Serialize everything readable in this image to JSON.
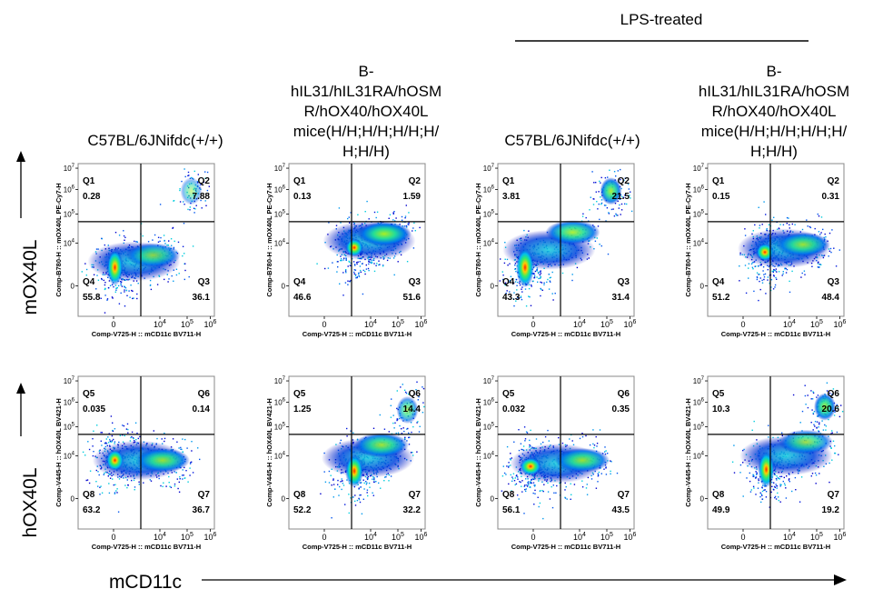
{
  "header": {
    "lps_label": "LPS-treated",
    "columns": [
      [
        "C57BL/6JNifdc(+/+)"
      ],
      [
        "B-",
        "hIL31/hIL31RA/hOSM",
        "R/hOX40/hOX40L",
        "mice(H/H;H/H;H/H;H/",
        "H;H/H)"
      ],
      [
        "C57BL/6JNifdc(+/+)"
      ],
      [
        "B-",
        "hIL31/hIL31RA/hOSM",
        "R/hOX40/hOX40L",
        "mice(H/H;H/H;H/H;H/",
        "H;H/H)"
      ]
    ]
  },
  "row_labels": [
    "mOX40L",
    "hOX40L"
  ],
  "bottom_axis_label": "mCD11c",
  "colors": {
    "density_low": "#0000cc",
    "density_mid": "#00ddcc",
    "density_high": "#ffee00",
    "density_peak": "#ff2200",
    "gate_line": "#000000",
    "frame": "#888888"
  },
  "chart_data": [
    {
      "type": "scatter",
      "subtype": "flow-cytometry-density",
      "row": 0,
      "col": 0,
      "xlabel": "Comp-V725-H :: mCD11c BV711-H",
      "ylabel": "Comp-B780-H :: mOX40L PE-Cy7-H",
      "x_ticks": [
        "0",
        "10^4",
        "10^5",
        "10^6"
      ],
      "y_ticks": [
        "0",
        "10^4",
        "10^5",
        "10^6",
        "10^7"
      ],
      "quadrants": [
        {
          "name": "Q1",
          "value": "0.28"
        },
        {
          "name": "Q2",
          "value": "7.88"
        },
        {
          "name": "Q3",
          "value": "36.1"
        },
        {
          "name": "Q4",
          "value": "55.8"
        }
      ]
    },
    {
      "type": "scatter",
      "subtype": "flow-cytometry-density",
      "row": 0,
      "col": 1,
      "xlabel": "Comp-V725-H :: mCD11c BV711-H",
      "ylabel": "Comp-B780-H :: mOX40L PE-Cy7-H",
      "x_ticks": [
        "0",
        "10^4",
        "10^5",
        "10^6"
      ],
      "y_ticks": [
        "0",
        "10^4",
        "10^5",
        "10^6",
        "10^7"
      ],
      "quadrants": [
        {
          "name": "Q1",
          "value": "0.13"
        },
        {
          "name": "Q2",
          "value": "1.59"
        },
        {
          "name": "Q3",
          "value": "51.6"
        },
        {
          "name": "Q4",
          "value": "46.6"
        }
      ]
    },
    {
      "type": "scatter",
      "subtype": "flow-cytometry-density",
      "row": 0,
      "col": 2,
      "xlabel": "Comp-V725-H :: mCD11c BV711-H",
      "ylabel": "Comp-B780-H :: mOX40L PE-Cy7-H",
      "x_ticks": [
        "0",
        "10^4",
        "10^5",
        "10^6"
      ],
      "y_ticks": [
        "0",
        "10^4",
        "10^5",
        "10^6",
        "10^7"
      ],
      "quadrants": [
        {
          "name": "Q1",
          "value": "3.81"
        },
        {
          "name": "Q2",
          "value": "21.5"
        },
        {
          "name": "Q3",
          "value": "31.4"
        },
        {
          "name": "Q4",
          "value": "43.3"
        }
      ]
    },
    {
      "type": "scatter",
      "subtype": "flow-cytometry-density",
      "row": 0,
      "col": 3,
      "xlabel": "Comp-V725-H :: mCD11c BV711-H",
      "ylabel": "Comp-B780-H :: mOX40L PE-Cy7-H",
      "x_ticks": [
        "0",
        "10^4",
        "10^5",
        "10^6"
      ],
      "y_ticks": [
        "0",
        "10^4",
        "10^5",
        "10^6",
        "10^7"
      ],
      "quadrants": [
        {
          "name": "Q1",
          "value": "0.15"
        },
        {
          "name": "Q2",
          "value": "0.31"
        },
        {
          "name": "Q3",
          "value": "48.4"
        },
        {
          "name": "Q4",
          "value": "51.2"
        }
      ]
    },
    {
      "type": "scatter",
      "subtype": "flow-cytometry-density",
      "row": 1,
      "col": 0,
      "xlabel": "Comp-V725-H :: mCD11c BV711-H",
      "ylabel": "Comp-V445-H :: hOX40L BV421-H",
      "x_ticks": [
        "0",
        "10^4",
        "10^5",
        "10^6"
      ],
      "y_ticks": [
        "0",
        "10^4",
        "10^5",
        "10^6",
        "10^7"
      ],
      "quadrants": [
        {
          "name": "Q5",
          "value": "0.035"
        },
        {
          "name": "Q6",
          "value": "0.14"
        },
        {
          "name": "Q7",
          "value": "36.7"
        },
        {
          "name": "Q8",
          "value": "63.2"
        }
      ]
    },
    {
      "type": "scatter",
      "subtype": "flow-cytometry-density",
      "row": 1,
      "col": 1,
      "xlabel": "Comp-V725-H :: mCD11c BV711-H",
      "ylabel": "Comp-V445-H :: hOX40L BV421-H",
      "x_ticks": [
        "0",
        "10^4",
        "10^5",
        "10^6"
      ],
      "y_ticks": [
        "0",
        "10^4",
        "10^5",
        "10^6",
        "10^7"
      ],
      "quadrants": [
        {
          "name": "Q5",
          "value": "1.25"
        },
        {
          "name": "Q6",
          "value": "14.4"
        },
        {
          "name": "Q7",
          "value": "32.2"
        },
        {
          "name": "Q8",
          "value": "52.2"
        }
      ]
    },
    {
      "type": "scatter",
      "subtype": "flow-cytometry-density",
      "row": 1,
      "col": 2,
      "xlabel": "Comp-V725-H :: mCD11c BV711-H",
      "ylabel": "Comp-V445-H :: hOX40L BV421-H",
      "x_ticks": [
        "0",
        "10^4",
        "10^5",
        "10^6"
      ],
      "y_ticks": [
        "0",
        "10^4",
        "10^5",
        "10^6",
        "10^7"
      ],
      "quadrants": [
        {
          "name": "Q5",
          "value": "0.032"
        },
        {
          "name": "Q6",
          "value": "0.35"
        },
        {
          "name": "Q7",
          "value": "43.5"
        },
        {
          "name": "Q8",
          "value": "56.1"
        }
      ]
    },
    {
      "type": "scatter",
      "subtype": "flow-cytometry-density",
      "row": 1,
      "col": 3,
      "xlabel": "Comp-V725-H :: mCD11c BV711-H",
      "ylabel": "Comp-V445-H :: hOX40L BV421-H",
      "x_ticks": [
        "0",
        "10^4",
        "10^5",
        "10^6"
      ],
      "y_ticks": [
        "0",
        "10^4",
        "10^5",
        "10^6",
        "10^7"
      ],
      "quadrants": [
        {
          "name": "Q5",
          "value": "10.3"
        },
        {
          "name": "Q6",
          "value": "20.6"
        },
        {
          "name": "Q7",
          "value": "19.2"
        },
        {
          "name": "Q8",
          "value": "49.9"
        }
      ]
    }
  ]
}
